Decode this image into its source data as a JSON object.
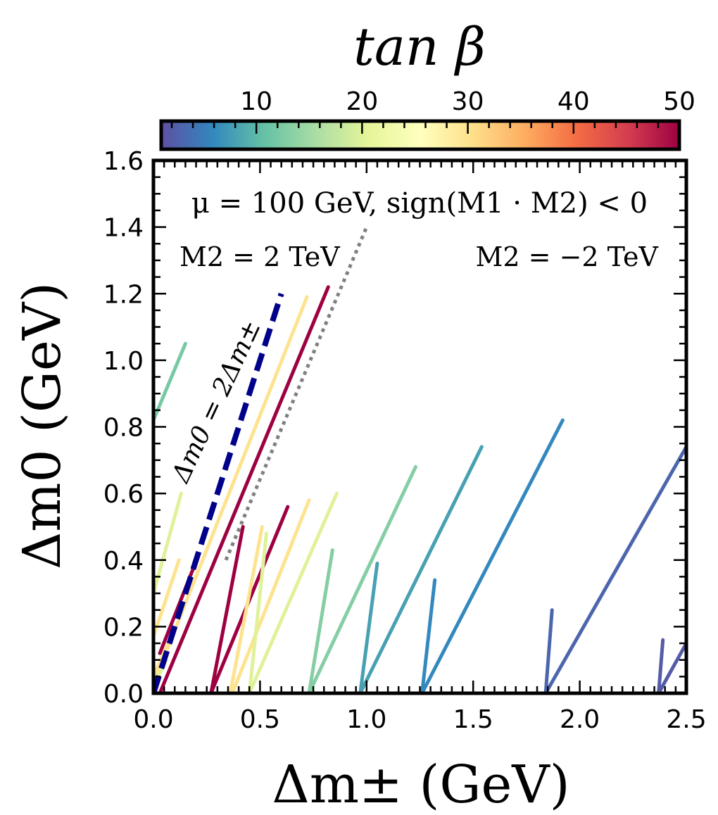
{
  "chart_data": {
    "type": "line",
    "colorbar": {
      "title": "tan β",
      "ticks": [
        10,
        20,
        30,
        40,
        50
      ],
      "range": [
        1,
        50
      ],
      "colormap": [
        "#5e4fa2",
        "#3288bd",
        "#66c2a5",
        "#abdda4",
        "#e6f598",
        "#ffffbf",
        "#fee08b",
        "#fdae61",
        "#f46d43",
        "#d53e4f",
        "#9e0142"
      ]
    },
    "xlabel": "Δm± (GeV)",
    "ylabel": "Δm0 (GeV)",
    "xlim": [
      0,
      2.5
    ],
    "ylim": [
      0,
      1.6
    ],
    "xticks": [
      "0.0",
      "0.5",
      "1.0",
      "1.5",
      "2.0",
      "2.5"
    ],
    "yticks": [
      "0.0",
      "0.2",
      "0.4",
      "0.6",
      "0.8",
      "1.0",
      "1.2",
      "1.4",
      "1.6"
    ],
    "annotations": {
      "top": "μ = 100 GeV, sign(M1 · M2) < 0",
      "left": "M2 = 2 TeV",
      "right": "M2 = −2 TeV",
      "diagonal": "Δm0 = 2Δm±"
    },
    "reference_lines": [
      {
        "kind": "dashed",
        "color": "#00008b",
        "points": [
          [
            0,
            0
          ],
          [
            0.6,
            1.2
          ]
        ]
      },
      {
        "kind": "dotted",
        "color": "#808080",
        "points": [
          [
            0.34,
            0.4
          ],
          [
            1.0,
            1.4
          ]
        ]
      }
    ],
    "series": [
      {
        "tanb": 12,
        "points": [
          [
            0,
            0.82
          ],
          [
            0.15,
            1.05
          ]
        ]
      },
      {
        "tanb": 30,
        "points": [
          [
            0.02,
            0.06
          ],
          [
            0.72,
            1.19
          ]
        ]
      },
      {
        "tanb": 50,
        "points": [
          [
            0.03,
            0.0
          ],
          [
            0.82,
            1.22
          ]
        ]
      },
      {
        "tanb": 20,
        "points": [
          [
            0,
            0.3
          ],
          [
            0.13,
            0.6
          ]
        ]
      },
      {
        "tanb": 30,
        "points": [
          [
            0,
            0.17
          ],
          [
            0.12,
            0.4
          ]
        ]
      },
      {
        "tanb": 50,
        "points": [
          [
            0.03,
            0.12
          ],
          [
            0.19,
            0.38
          ]
        ]
      },
      {
        "tanb": 30,
        "points": [
          [
            0,
            0.05
          ],
          [
            0.07,
            0.15
          ]
        ]
      },
      {
        "tanb": 20,
        "points": [
          [
            0,
            0.02
          ],
          [
            0.06,
            0.1
          ]
        ]
      },
      {
        "tanb": 50,
        "points": [
          [
            0.27,
            0.0
          ],
          [
            0.42,
            0.5
          ]
        ]
      },
      {
        "tanb": 50,
        "points": [
          [
            0.27,
            0.0
          ],
          [
            0.63,
            0.56
          ]
        ]
      },
      {
        "tanb": 30,
        "points": [
          [
            0.36,
            0.0
          ],
          [
            0.51,
            0.5
          ]
        ]
      },
      {
        "tanb": 30,
        "points": [
          [
            0.37,
            0.0
          ],
          [
            0.73,
            0.58
          ]
        ]
      },
      {
        "tanb": 20,
        "points": [
          [
            0.45,
            0.0
          ],
          [
            0.53,
            0.48
          ]
        ]
      },
      {
        "tanb": 20,
        "points": [
          [
            0.45,
            0.0
          ],
          [
            0.86,
            0.6
          ]
        ]
      },
      {
        "tanb": 13,
        "points": [
          [
            0.73,
            0.0
          ],
          [
            0.84,
            0.43
          ]
        ]
      },
      {
        "tanb": 13,
        "points": [
          [
            0.73,
            0.0
          ],
          [
            1.23,
            0.68
          ]
        ]
      },
      {
        "tanb": 8,
        "points": [
          [
            0.97,
            0.0
          ],
          [
            1.05,
            0.39
          ]
        ]
      },
      {
        "tanb": 8,
        "points": [
          [
            0.97,
            0.0
          ],
          [
            1.54,
            0.74
          ]
        ]
      },
      {
        "tanb": 6,
        "points": [
          [
            1.26,
            0.0
          ],
          [
            1.32,
            0.34
          ]
        ]
      },
      {
        "tanb": 6,
        "points": [
          [
            1.26,
            0.0
          ],
          [
            1.92,
            0.82
          ]
        ]
      },
      {
        "tanb": 3,
        "points": [
          [
            1.84,
            0.0
          ],
          [
            1.87,
            0.25
          ]
        ]
      },
      {
        "tanb": 3,
        "points": [
          [
            1.84,
            0.0
          ],
          [
            2.5,
            0.74
          ]
        ]
      },
      {
        "tanb": 2,
        "points": [
          [
            2.37,
            0.0
          ],
          [
            2.39,
            0.16
          ]
        ]
      },
      {
        "tanb": 2,
        "points": [
          [
            2.37,
            0.0
          ],
          [
            2.5,
            0.15
          ]
        ]
      }
    ]
  }
}
